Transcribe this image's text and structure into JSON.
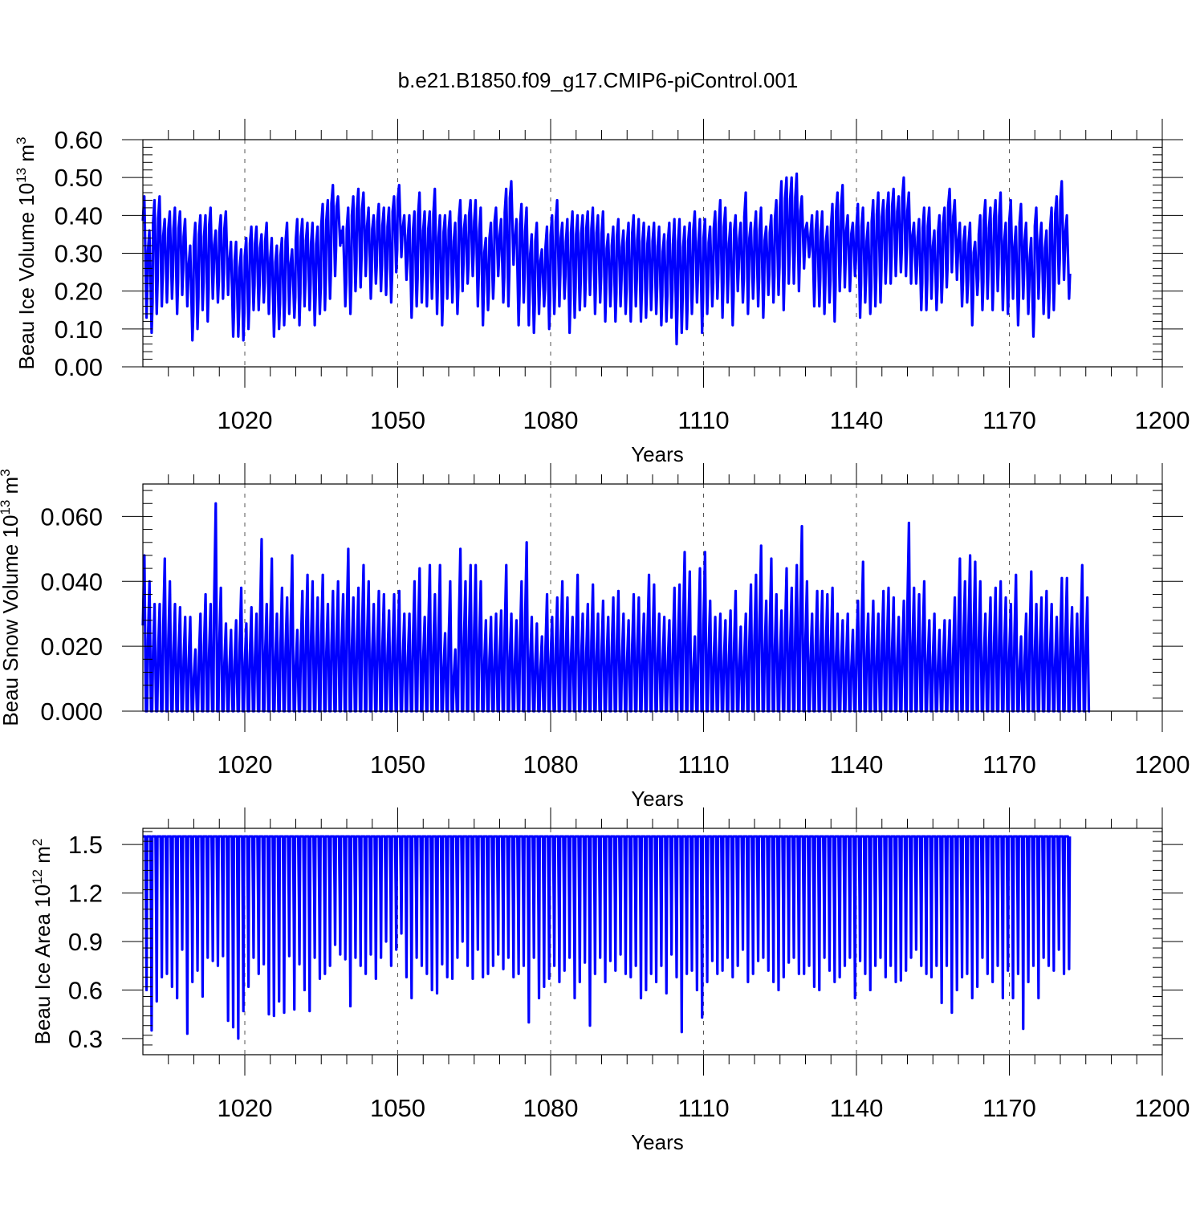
{
  "title": "b.e21.B1850.f09_g17.CMIP6-piControl.001",
  "colors": {
    "series": "#0000ff",
    "axis": "#000000",
    "grid": "#555555"
  },
  "chart_data": [
    {
      "type": "line",
      "id": "ice-volume",
      "ylabel_prefix": "Beau Ice Volume 10",
      "ylabel_exp": "13",
      "ylabel_unit": " m",
      "ylabel_unit_exp": "3",
      "xlabel": "Years",
      "xlim": [
        1000,
        1200
      ],
      "ylim": [
        0,
        0.6
      ],
      "xticks": [
        1020,
        1050,
        1080,
        1110,
        1140,
        1170,
        1200
      ],
      "xtick_labels": [
        "1020",
        "1050",
        "1080",
        "1110",
        "1140",
        "1170",
        "1200"
      ],
      "yticks": [
        0,
        0.1,
        0.2,
        0.3,
        0.4,
        0.5,
        0.6
      ],
      "ytick_labels": [
        "0.00",
        "0.10",
        "0.20",
        "0.30",
        "0.40",
        "0.50",
        "0.60"
      ],
      "grid": "vertical dashed at major x ticks",
      "series": [
        {
          "name": "Beau Ice Volume",
          "x_start": 1000,
          "seasonal_cycle": "annual: max in spring, min in early autumn",
          "annual_max": [
            0.45,
            0.36,
            0.44,
            0.45,
            0.39,
            0.41,
            0.42,
            0.41,
            0.39,
            0.32,
            0.38,
            0.4,
            0.4,
            0.42,
            0.36,
            0.4,
            0.41,
            0.33,
            0.33,
            0.31,
            0.34,
            0.37,
            0.37,
            0.35,
            0.38,
            0.34,
            0.32,
            0.34,
            0.38,
            0.31,
            0.39,
            0.39,
            0.38,
            0.38,
            0.37,
            0.43,
            0.44,
            0.48,
            0.45,
            0.37,
            0.42,
            0.45,
            0.47,
            0.46,
            0.42,
            0.4,
            0.43,
            0.42,
            0.42,
            0.45,
            0.48,
            0.4,
            0.4,
            0.41,
            0.46,
            0.41,
            0.41,
            0.47,
            0.4,
            0.4,
            0.41,
            0.38,
            0.44,
            0.4,
            0.44,
            0.44,
            0.42,
            0.34,
            0.38,
            0.42,
            0.39,
            0.47,
            0.49,
            0.39,
            0.43,
            0.42,
            0.35,
            0.38,
            0.31,
            0.37,
            0.4,
            0.44,
            0.38,
            0.39,
            0.41,
            0.4,
            0.4,
            0.41,
            0.42,
            0.4,
            0.41,
            0.35,
            0.37,
            0.39,
            0.36,
            0.38,
            0.4,
            0.39,
            0.38,
            0.37,
            0.38,
            0.37,
            0.35,
            0.38,
            0.39,
            0.39,
            0.37,
            0.38,
            0.41,
            0.39,
            0.39,
            0.37,
            0.41,
            0.44,
            0.42,
            0.38,
            0.4,
            0.38,
            0.46,
            0.38,
            0.41,
            0.42,
            0.37,
            0.4,
            0.44,
            0.49,
            0.5,
            0.5,
            0.51,
            0.45,
            0.38,
            0.4,
            0.41,
            0.41,
            0.37,
            0.43,
            0.46,
            0.48,
            0.4,
            0.38,
            0.43,
            0.42,
            0.38,
            0.44,
            0.46,
            0.44,
            0.46,
            0.47,
            0.45,
            0.5,
            0.46,
            0.38,
            0.39,
            0.42,
            0.42,
            0.36,
            0.4,
            0.42,
            0.47,
            0.44,
            0.38,
            0.37,
            0.38,
            0.33,
            0.4,
            0.44,
            0.42,
            0.44,
            0.46,
            0.38,
            0.44,
            0.37,
            0.43,
            0.38,
            0.34,
            0.42,
            0.38,
            0.36,
            0.42,
            0.45,
            0.49,
            0.4
          ],
          "annual_min": [
            0.13,
            0.09,
            0.14,
            0.16,
            0.17,
            0.18,
            0.14,
            0.19,
            0.16,
            0.07,
            0.1,
            0.15,
            0.12,
            0.18,
            0.17,
            0.18,
            0.19,
            0.08,
            0.08,
            0.07,
            0.1,
            0.15,
            0.15,
            0.17,
            0.14,
            0.08,
            0.1,
            0.11,
            0.14,
            0.13,
            0.11,
            0.16,
            0.15,
            0.11,
            0.14,
            0.15,
            0.18,
            0.24,
            0.32,
            0.16,
            0.14,
            0.2,
            0.21,
            0.24,
            0.18,
            0.22,
            0.2,
            0.19,
            0.17,
            0.25,
            0.29,
            0.23,
            0.13,
            0.16,
            0.17,
            0.16,
            0.18,
            0.14,
            0.11,
            0.18,
            0.17,
            0.14,
            0.2,
            0.22,
            0.24,
            0.16,
            0.11,
            0.15,
            0.18,
            0.24,
            0.17,
            0.16,
            0.27,
            0.11,
            0.17,
            0.11,
            0.09,
            0.14,
            0.16,
            0.1,
            0.14,
            0.16,
            0.18,
            0.09,
            0.13,
            0.15,
            0.16,
            0.19,
            0.14,
            0.17,
            0.12,
            0.16,
            0.12,
            0.16,
            0.14,
            0.12,
            0.16,
            0.12,
            0.13,
            0.15,
            0.14,
            0.11,
            0.12,
            0.13,
            0.06,
            0.09,
            0.1,
            0.14,
            0.17,
            0.09,
            0.14,
            0.16,
            0.18,
            0.13,
            0.17,
            0.11,
            0.2,
            0.17,
            0.14,
            0.18,
            0.16,
            0.13,
            0.19,
            0.17,
            0.19,
            0.15,
            0.22,
            0.22,
            0.2,
            0.26,
            0.29,
            0.16,
            0.16,
            0.14,
            0.17,
            0.12,
            0.2,
            0.21,
            0.2,
            0.24,
            0.13,
            0.17,
            0.14,
            0.16,
            0.17,
            0.22,
            0.22,
            0.24,
            0.25,
            0.24,
            0.22,
            0.22,
            0.15,
            0.15,
            0.18,
            0.15,
            0.17,
            0.21,
            0.25,
            0.23,
            0.16,
            0.17,
            0.11,
            0.19,
            0.15,
            0.18,
            0.15,
            0.2,
            0.15,
            0.14,
            0.18,
            0.11,
            0.18,
            0.14,
            0.08,
            0.18,
            0.14,
            0.13,
            0.15,
            0.22,
            0.23,
            0.18
          ]
        }
      ]
    },
    {
      "type": "line",
      "id": "snow-volume",
      "ylabel_prefix": "Beau Snow Volume 10",
      "ylabel_exp": "13",
      "ylabel_unit": " m",
      "ylabel_unit_exp": "3",
      "xlabel": "Years",
      "xlim": [
        1000,
        1200
      ],
      "ylim": [
        0,
        0.07
      ],
      "xticks": [
        1020,
        1050,
        1080,
        1110,
        1140,
        1170,
        1200
      ],
      "xtick_labels": [
        "1020",
        "1050",
        "1080",
        "1110",
        "1140",
        "1170",
        "1200"
      ],
      "yticks": [
        0,
        0.02,
        0.04,
        0.06
      ],
      "ytick_labels": [
        "0.000",
        "0.020",
        "0.040",
        "0.060"
      ],
      "grid": "vertical dashed at major x ticks",
      "series": [
        {
          "name": "Beau Snow Volume",
          "x_start": 1000,
          "seasonal_cycle": "annual: peak in spring, near zero in summer",
          "annual_max": [
            0.048,
            0.04,
            0.033,
            0.033,
            0.047,
            0.04,
            0.033,
            0.032,
            0.029,
            0.029,
            0.019,
            0.03,
            0.036,
            0.033,
            0.064,
            0.038,
            0.027,
            0.025,
            0.028,
            0.038,
            0.027,
            0.032,
            0.03,
            0.053,
            0.033,
            0.047,
            0.03,
            0.038,
            0.035,
            0.048,
            0.025,
            0.037,
            0.042,
            0.04,
            0.035,
            0.042,
            0.033,
            0.037,
            0.04,
            0.036,
            0.05,
            0.035,
            0.038,
            0.045,
            0.04,
            0.033,
            0.037,
            0.036,
            0.031,
            0.036,
            0.037,
            0.03,
            0.03,
            0.04,
            0.044,
            0.029,
            0.045,
            0.036,
            0.045,
            0.024,
            0.04,
            0.019,
            0.05,
            0.04,
            0.045,
            0.045,
            0.04,
            0.028,
            0.029,
            0.03,
            0.031,
            0.045,
            0.03,
            0.028,
            0.04,
            0.052,
            0.029,
            0.027,
            0.023,
            0.036,
            0.029,
            0.035,
            0.04,
            0.035,
            0.029,
            0.042,
            0.03,
            0.033,
            0.039,
            0.03,
            0.034,
            0.029,
            0.035,
            0.037,
            0.03,
            0.028,
            0.036,
            0.035,
            0.03,
            0.042,
            0.039,
            0.03,
            0.029,
            0.028,
            0.038,
            0.039,
            0.049,
            0.043,
            0.023,
            0.044,
            0.049,
            0.034,
            0.029,
            0.03,
            0.028,
            0.031,
            0.037,
            0.026,
            0.03,
            0.039,
            0.042,
            0.051,
            0.034,
            0.047,
            0.036,
            0.031,
            0.044,
            0.038,
            0.045,
            0.057,
            0.04,
            0.03,
            0.037,
            0.037,
            0.036,
            0.038,
            0.03,
            0.028,
            0.03,
            0.025,
            0.034,
            0.046,
            0.03,
            0.034,
            0.03,
            0.037,
            0.038,
            0.035,
            0.029,
            0.034,
            0.058,
            0.038,
            0.036,
            0.04,
            0.028,
            0.03,
            0.025,
            0.028,
            0.028,
            0.035,
            0.047,
            0.04,
            0.048,
            0.046,
            0.04,
            0.03,
            0.035,
            0.038,
            0.04,
            0.035,
            0.033,
            0.042,
            0.023,
            0.03,
            0.043,
            0.033,
            0.035,
            0.037,
            0.033,
            0.029,
            0.041,
            0.041,
            0.032,
            0.03,
            0.045,
            0.035
          ]
        }
      ]
    },
    {
      "type": "line",
      "id": "ice-area",
      "ylabel_prefix": "Beau Ice Area 10",
      "ylabel_exp": "12",
      "ylabel_unit": " m",
      "ylabel_unit_exp": "2",
      "xlabel": "Years",
      "xlim": [
        1000,
        1200
      ],
      "ylim": [
        0.2,
        1.6
      ],
      "xticks": [
        1020,
        1050,
        1080,
        1110,
        1140,
        1170,
        1200
      ],
      "xtick_labels": [
        "1020",
        "1050",
        "1080",
        "1110",
        "1140",
        "1170",
        "1200"
      ],
      "yticks": [
        0.3,
        0.6,
        0.9,
        1.2,
        1.5
      ],
      "ytick_labels": [
        "0.3",
        "0.6",
        "0.9",
        "1.2",
        "1.5"
      ],
      "grid": "vertical dashed at major x ticks",
      "series": [
        {
          "name": "Beau Ice Area",
          "x_start": 1000,
          "annual_max_value": 1.55,
          "seasonal_cycle": "annual: saturated at 1.55 in winter, minimum in early autumn",
          "annual_min": [
            0.6,
            0.35,
            0.53,
            0.68,
            0.7,
            0.62,
            0.55,
            0.85,
            0.33,
            0.65,
            0.72,
            0.56,
            0.8,
            0.78,
            0.75,
            0.81,
            0.41,
            0.37,
            0.3,
            0.47,
            0.62,
            0.8,
            0.7,
            0.76,
            0.45,
            0.44,
            0.53,
            0.46,
            0.81,
            0.48,
            0.76,
            0.6,
            0.47,
            0.8,
            0.67,
            0.7,
            0.75,
            0.88,
            0.82,
            0.79,
            0.5,
            0.8,
            0.75,
            0.7,
            0.82,
            0.67,
            0.8,
            0.9,
            0.75,
            0.85,
            0.95,
            0.68,
            0.55,
            0.8,
            0.75,
            0.7,
            0.6,
            0.58,
            0.76,
            0.68,
            0.67,
            0.8,
            0.9,
            0.75,
            0.67,
            0.85,
            0.68,
            0.7,
            0.75,
            0.82,
            0.73,
            0.8,
            0.68,
            0.7,
            0.75,
            0.4,
            0.8,
            0.55,
            0.62,
            0.67,
            0.75,
            0.65,
            0.72,
            0.8,
            0.55,
            0.65,
            0.77,
            0.38,
            0.7,
            0.8,
            0.65,
            0.78,
            0.72,
            0.82,
            0.7,
            0.68,
            0.75,
            0.55,
            0.6,
            0.7,
            0.65,
            0.75,
            0.58,
            0.82,
            0.68,
            0.34,
            0.7,
            0.72,
            0.6,
            0.43,
            0.65,
            0.78,
            0.7,
            0.72,
            0.8,
            0.68,
            0.75,
            0.85,
            0.65,
            0.7,
            0.78,
            0.8,
            0.72,
            0.65,
            0.6,
            0.68,
            0.77,
            0.8,
            0.7,
            0.7,
            0.75,
            0.62,
            0.6,
            0.8,
            0.72,
            0.65,
            0.68,
            0.75,
            0.8,
            0.55,
            0.78,
            0.7,
            0.6,
            0.75,
            0.8,
            0.68,
            0.75,
            0.65,
            0.66,
            0.72,
            0.8,
            0.85,
            0.75,
            0.7,
            0.68,
            0.75,
            0.52,
            0.75,
            0.46,
            0.6,
            0.68,
            0.7,
            0.55,
            0.62,
            0.8,
            0.7,
            0.65,
            0.75,
            0.55,
            0.72,
            0.55,
            0.7,
            0.36,
            0.65,
            0.75,
            0.55,
            0.8,
            0.75,
            0.72,
            0.85,
            0.7,
            0.73
          ]
        }
      ]
    }
  ]
}
